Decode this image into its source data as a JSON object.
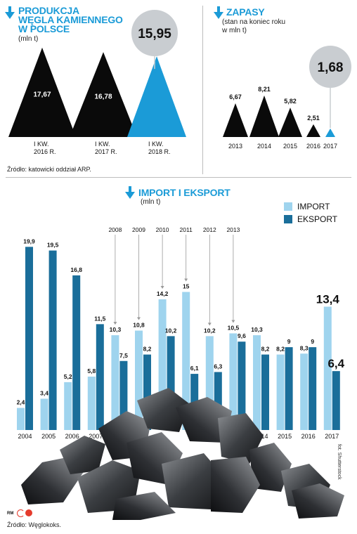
{
  "colors": {
    "accent": "#1b9bd7",
    "import": "#9fd4ee",
    "export": "#1a6e9a",
    "dark": "#0a0a0a",
    "bubble": "#c9cdd1"
  },
  "production": {
    "title_line1": "PRODUKCJA",
    "title_line2": "WĘGLA KAMIENNEGO",
    "title_line3": "W POLSCE",
    "unit": "(mln t)",
    "highlight": "15,95",
    "source": "Źródło: katowicki oddział ARP."
  },
  "reserves": {
    "title": "ZAPASY",
    "subtitle_line1": "(stan na koniec roku",
    "subtitle_line2": "w mln t)",
    "highlight": "1,68"
  },
  "trade": {
    "title": "IMPORT I EKSPORT",
    "unit": "(mln t)",
    "legend_import": "IMPORT",
    "legend_export": "EKSPORT",
    "photo_credit": "fot. Shutterstock",
    "rm_mark": "RM",
    "cp_mark": "CP",
    "source": "Źródło: Węglokoks."
  },
  "chart_data": [
    {
      "type": "bar",
      "title": "PRODUKCJA WĘGLA KAMIENNEGO W POLSCE",
      "unit": "(mln t)",
      "categories": [
        "I KW. 2016 R.",
        "I KW. 2017 R.",
        "I KW. 2018 R."
      ],
      "values": [
        17.67,
        16.78,
        15.95
      ],
      "labels": [
        "17,67",
        "16,78",
        "15,95"
      ],
      "cat_lines": [
        [
          "I KW.",
          "2016 R."
        ],
        [
          "I KW.",
          "2017 R."
        ],
        [
          "I KW.",
          "2018 R."
        ]
      ]
    },
    {
      "type": "bar",
      "title": "ZAPASY",
      "subtitle": "(stan na koniec roku w mln t)",
      "categories": [
        "2013",
        "2014",
        "2015",
        "2016",
        "2017"
      ],
      "values": [
        6.67,
        8.21,
        5.82,
        2.51,
        1.68
      ],
      "labels": [
        "6,67",
        "8,21",
        "5,82",
        "2,51",
        "1,68"
      ]
    },
    {
      "type": "bar",
      "title": "IMPORT I EKSPORT",
      "unit": "(mln t)",
      "categories": [
        "2004",
        "2005",
        "2006",
        "2007",
        "2008",
        "2009",
        "2010",
        "2011",
        "2012",
        "2013",
        "2014",
        "2015",
        "2016",
        "2017"
      ],
      "axis_labels": [
        "2004",
        "2005",
        "2006",
        "2007",
        "",
        "",
        "",
        "",
        "",
        "",
        "2014",
        "2015",
        "2016",
        "2017"
      ],
      "callout_labels": [
        "",
        "",
        "",
        "",
        "2008",
        "2009",
        "2010",
        "2011",
        "2012",
        "2013",
        "",
        "",
        "",
        ""
      ],
      "series": [
        {
          "name": "IMPORT",
          "values": [
            2.4,
            3.4,
            5.2,
            5.8,
            10.3,
            10.8,
            14.2,
            15.0,
            10.2,
            10.5,
            10.3,
            8.2,
            8.3,
            13.4
          ],
          "labels": [
            "2,4",
            "3,4",
            "5,2",
            "5,8",
            "10,3",
            "10,8",
            "14,2",
            "15",
            "10,2",
            "10,5",
            "10,3",
            "8,2",
            "8,3",
            "13,4"
          ]
        },
        {
          "name": "EKSPORT",
          "values": [
            19.9,
            19.5,
            16.8,
            11.5,
            7.5,
            8.2,
            10.2,
            6.1,
            6.3,
            9.6,
            8.2,
            9.0,
            9.0,
            6.4
          ],
          "labels": [
            "19,9",
            "19,5",
            "16,8",
            "11,5",
            "7,5",
            "8,2",
            "10,2",
            "6,1",
            "6,3",
            "9,6",
            "8,2",
            "9",
            "9",
            "6,4"
          ]
        }
      ],
      "ylim": [
        0,
        20.5
      ]
    }
  ]
}
